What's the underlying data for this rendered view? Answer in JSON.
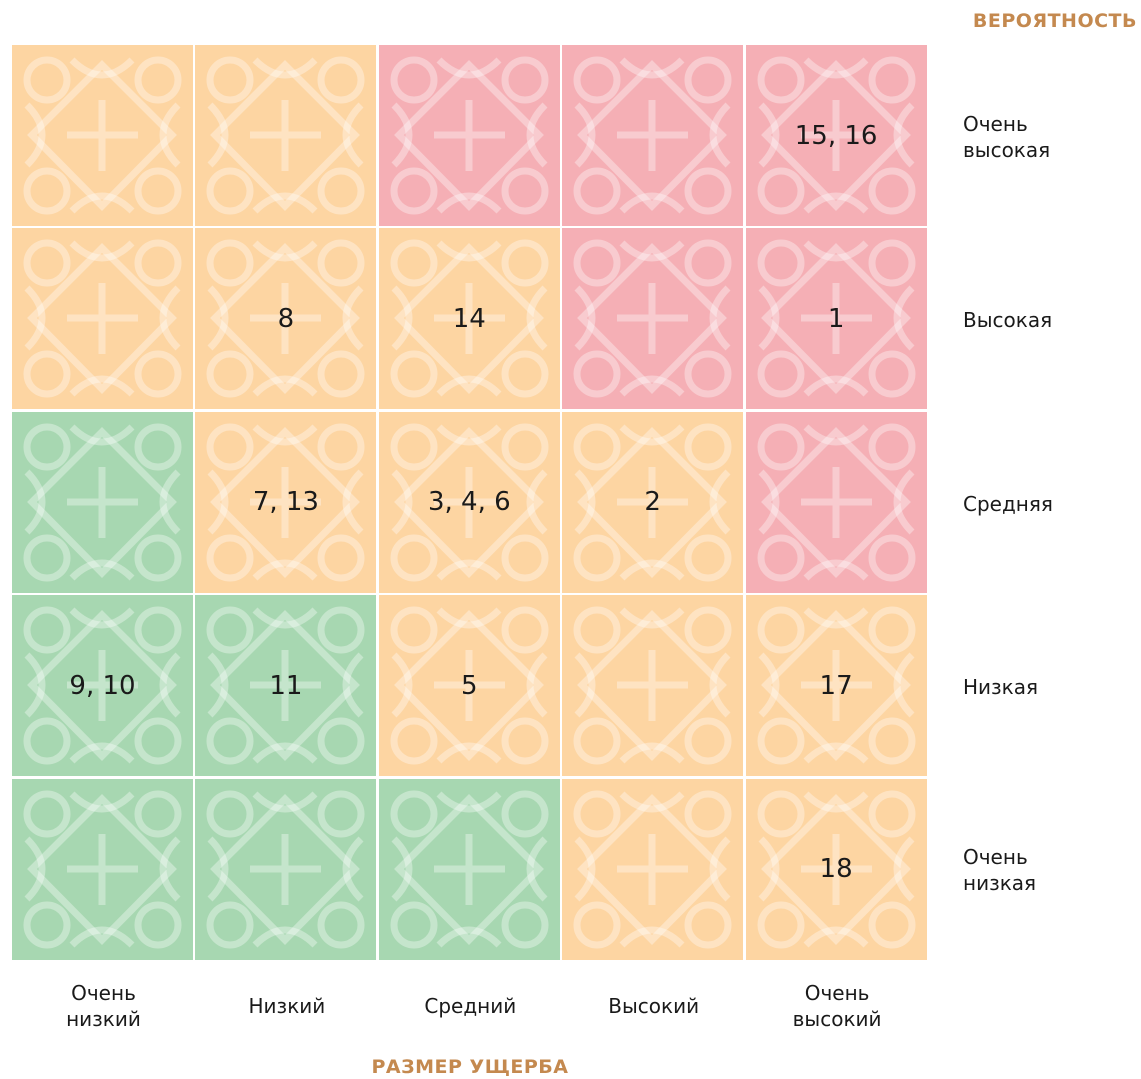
{
  "axis_y_title": "ВЕРОЯТНОСТЬ",
  "axis_x_title": "РАЗМЕР УЩЕРБА",
  "row_labels": [
    "Очень\nвысокая",
    "Высокая",
    "Средняя",
    "Низкая",
    "Очень\nнизкая"
  ],
  "column_labels": [
    "Очень\nнизкий",
    "Низкий",
    "Средний",
    "Высокий",
    "Очень\nвысокий"
  ],
  "rows": [
    [
      {
        "color": "#fdd5a2"
      },
      {
        "color": "#fdd5a2"
      },
      {
        "color": "#f5afb5"
      },
      {
        "color": "#f5afb5"
      },
      {
        "color": "#f5afb5",
        "label": "15, 16"
      }
    ],
    [
      {
        "color": "#fdd5a2"
      },
      {
        "color": "#fdd5a2",
        "label": "8"
      },
      {
        "color": "#fdd5a2",
        "label": "14"
      },
      {
        "color": "#f5afb5"
      },
      {
        "color": "#f5afb5",
        "label": "1"
      }
    ],
    [
      {
        "color": "#a7d7b1"
      },
      {
        "color": "#fdd5a2",
        "label": "7, 13"
      },
      {
        "color": "#fdd5a2",
        "label": "3, 4, 6"
      },
      {
        "color": "#fdd5a2",
        "label": "2"
      },
      {
        "color": "#f5afb5"
      }
    ],
    [
      {
        "color": "#a7d7b1",
        "label": "9, 10"
      },
      {
        "color": "#a7d7b1",
        "label": "11"
      },
      {
        "color": "#fdd5a2",
        "label": "5"
      },
      {
        "color": "#fdd5a2"
      },
      {
        "color": "#fdd5a2",
        "label": "17"
      }
    ],
    [
      {
        "color": "#a7d7b1"
      },
      {
        "color": "#a7d7b1"
      },
      {
        "color": "#a7d7b1"
      },
      {
        "color": "#fdd5a2"
      },
      {
        "color": "#fdd5a2",
        "label": "18"
      }
    ]
  ]
}
